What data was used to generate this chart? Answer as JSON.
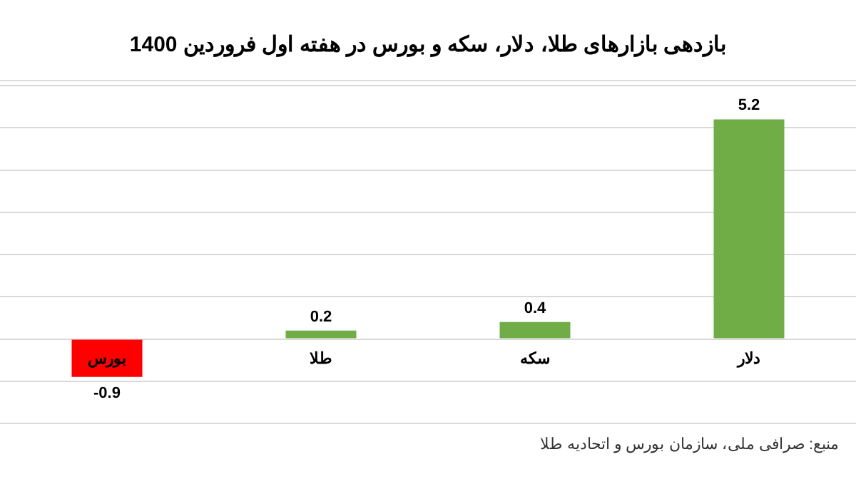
{
  "chart_data": {
    "type": "bar",
    "title": "بازدهی بازارهای طلا، دلار، سکه و بورس در هفته اول فروردین 1400",
    "categories": [
      "بورس",
      "طلا",
      "سکه",
      "دلار"
    ],
    "values": [
      -0.9,
      0.2,
      0.4,
      5.2
    ],
    "colors": [
      "#ff0000",
      "#70ad47",
      "#70ad47",
      "#70ad47"
    ],
    "ylim": [
      -2,
      6
    ],
    "yticks": [
      {
        "value": -2,
        "label": null
      },
      {
        "value": -1,
        "label": null
      },
      {
        "value": 0,
        "label": null
      },
      {
        "value": 1,
        "label": null
      },
      {
        "value": 2,
        "label": null
      },
      {
        "value": 3,
        "label": null
      },
      {
        "value": 4,
        "label": null
      },
      {
        "value": 5,
        "label": null
      },
      {
        "value": 6,
        "label": null
      }
    ],
    "grid": true,
    "data_labels": true,
    "legend": false,
    "annotations": [
      "منبع: صرافی ملی، سازمان بورس و اتحادیه طلا"
    ]
  }
}
